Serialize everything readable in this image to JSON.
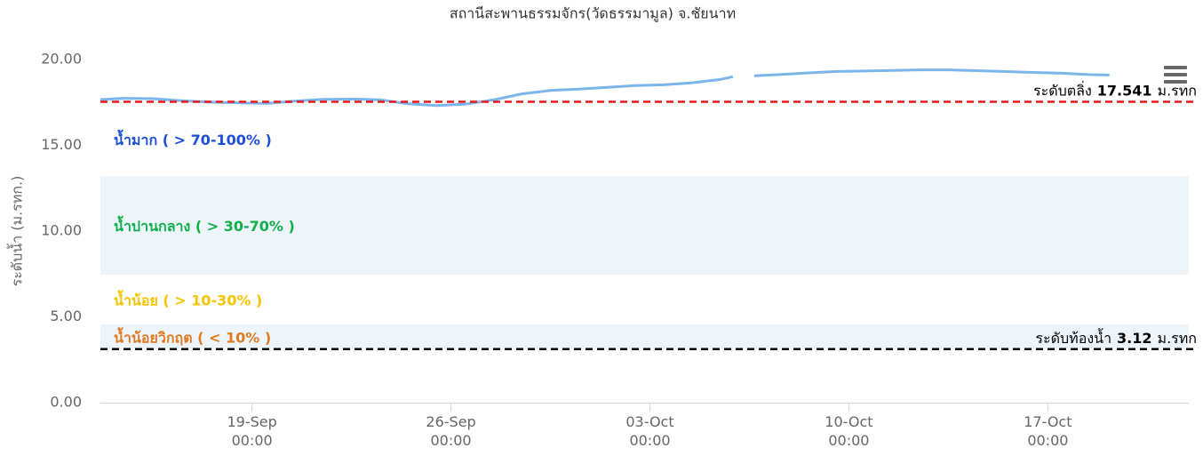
{
  "chart_data": {
    "type": "line",
    "title": "สถานีสะพานธรรมจักร(วัดธรรมามูล) จ.ชัยนาท",
    "y_label": "ระดับน้ำ (ม.รทก.)",
    "x": [
      "13-Sep 16:00",
      "14-Sep 12:00",
      "15-Sep 12:00",
      "16-Sep 12:00",
      "17-Sep 12:00",
      "18-Sep 12:00",
      "19-Sep 12:00",
      "20-Sep 12:00",
      "21-Sep 12:00",
      "22-Sep 12:00",
      "23-Sep 12:00",
      "24-Sep 12:00",
      "25-Sep 12:00",
      "26-Sep 12:00",
      "27-Sep 12:00",
      "28-Sep 12:00",
      "29-Sep 12:00",
      "30-Sep 12:00",
      "01-Oct 12:00",
      "02-Oct 12:00",
      "03-Oct 12:00",
      "04-Oct 12:00",
      "05-Oct 12:00",
      "05-Oct 22:00",
      "06-Oct 04:00",
      "06-Oct 16:00",
      "07-Oct 12:00",
      "08-Oct 12:00",
      "09-Oct 12:00",
      "10-Oct 12:00",
      "11-Oct 12:00",
      "12-Oct 12:00",
      "13-Oct 12:00",
      "14-Oct 12:00",
      "15-Oct 12:00",
      "16-Oct 12:00",
      "17-Oct 12:00",
      "18-Oct 12:00",
      "19-Oct 04:00"
    ],
    "series": [
      {
        "name": "ระดับน้ำ",
        "color": "#7cb5ec",
        "values": [
          17.67,
          17.74,
          17.72,
          17.6,
          17.52,
          17.48,
          17.44,
          17.58,
          17.68,
          17.7,
          17.66,
          17.42,
          17.32,
          17.4,
          17.65,
          18.0,
          18.2,
          18.28,
          18.38,
          18.48,
          18.53,
          18.65,
          18.85,
          19.0,
          null,
          19.05,
          19.12,
          19.22,
          19.3,
          19.33,
          19.37,
          19.4,
          19.4,
          19.35,
          19.3,
          19.25,
          19.2,
          19.12,
          19.1
        ]
      }
    ],
    "xlim": [
      "13-Sep 16:00",
      "21-Oct 23:00"
    ],
    "xticks": [
      "19-Sep 00:00",
      "26-Sep 00:00",
      "03-Oct 00:00",
      "10-Oct 00:00",
      "17-Oct 00:00"
    ],
    "ylim": [
      0,
      20
    ],
    "yticks": [
      {
        "value": 0,
        "label": "0.00"
      },
      {
        "value": 5,
        "label": "5.00"
      },
      {
        "value": 10,
        "label": "10.00"
      },
      {
        "value": 15,
        "label": "15.00"
      },
      {
        "value": 20,
        "label": "20.00"
      }
    ],
    "plot_lines": [
      {
        "label": "ระดับตลิ่ง",
        "value": 17.541,
        "unit": "ม.รทก",
        "color": "#e8191b"
      },
      {
        "label": "ระดับท้องน้ำ",
        "value": 3.12,
        "unit": "ม.รทก",
        "color": "#000000"
      }
    ],
    "zones": [
      {
        "name": "น้ำมาก ( > 70-100% )",
        "color": "#1d4fd8",
        "from": 13.2,
        "to": 17.541,
        "shaded": false
      },
      {
        "name": "น้ำปานกลาง ( > 30-70% )",
        "color": "#10b04a",
        "from": 7.46,
        "to": 13.2,
        "shaded": true
      },
      {
        "name": "น้ำน้อย ( > 10-30% )",
        "color": "#f5c400",
        "from": 4.56,
        "to": 7.46,
        "shaded": false
      },
      {
        "name": "น้ำน้อยวิกฤต ( < 10% )",
        "color": "#e07b24",
        "from": 3.12,
        "to": 4.56,
        "shaded": true
      }
    ]
  }
}
